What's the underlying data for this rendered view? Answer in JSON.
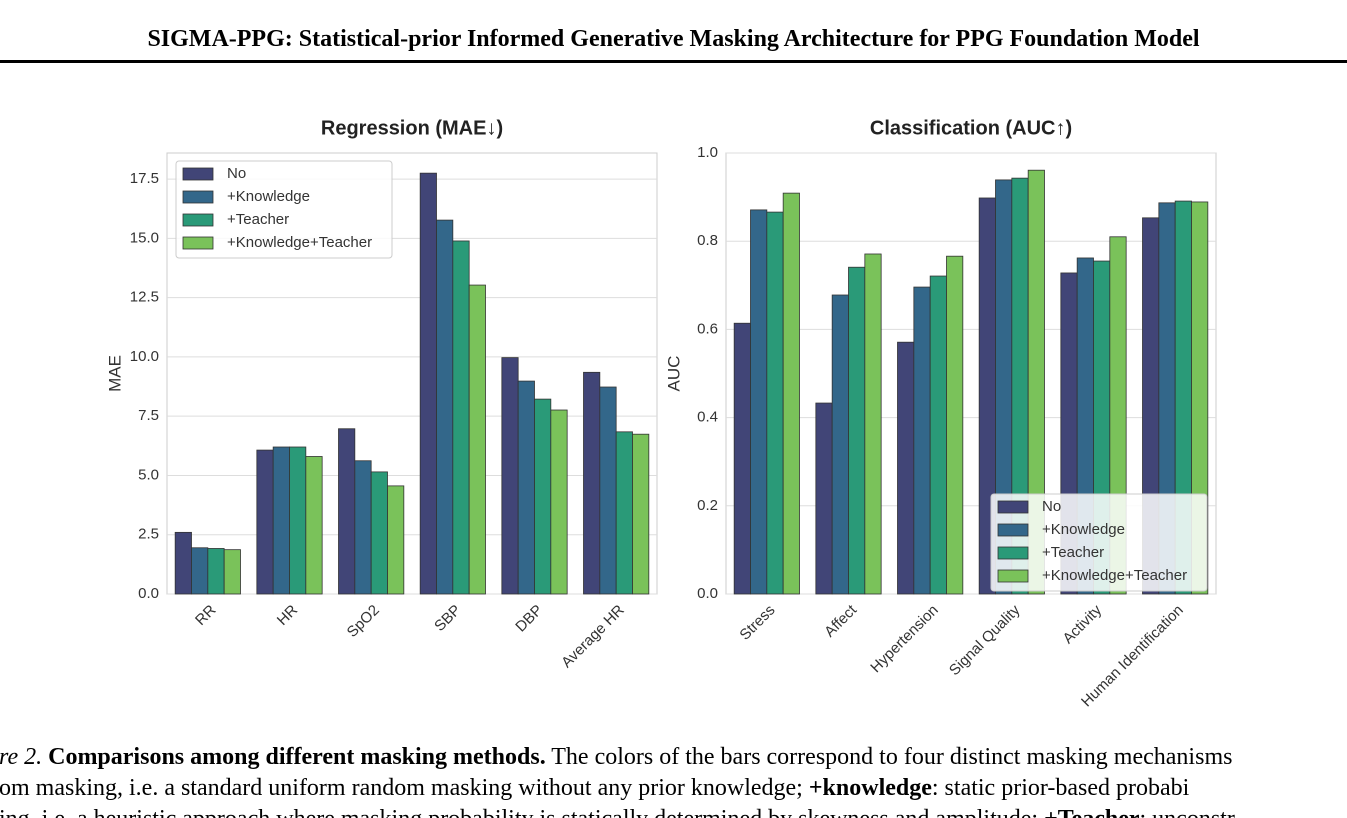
{
  "header": {
    "title": "SIGMA-PPG: Statistical-prior Informed Generative Masking Architecture for PPG Foundation Model"
  },
  "chart_data": [
    {
      "type": "bar",
      "title": "Regression (MAE↓)",
      "y_label": "MAE",
      "categories": [
        "RR",
        "HR",
        "SpO2",
        "SBP",
        "DBP",
        "Average HR"
      ],
      "series": [
        {
          "name": "No",
          "color": "#414577",
          "values": [
            2.6,
            6.07,
            6.97,
            17.75,
            9.97,
            9.35
          ]
        },
        {
          "name": "+Knowledge",
          "color": "#33678a",
          "values": [
            1.95,
            6.2,
            5.62,
            15.77,
            8.98,
            8.73
          ]
        },
        {
          "name": "+Teacher",
          "color": "#2a9a78",
          "values": [
            1.92,
            6.2,
            5.15,
            14.89,
            8.22,
            6.84
          ]
        },
        {
          "name": "+Knowledge+Teacher",
          "color": "#7ac25a",
          "values": [
            1.87,
            5.8,
            4.56,
            13.03,
            7.76,
            6.74
          ]
        }
      ],
      "ylim": [
        0,
        18.6
      ],
      "yticks": [
        {
          "value": 0,
          "label": "0.0"
        },
        2.5,
        {
          "value": 5,
          "label": "5.0"
        },
        7.5,
        {
          "value": 10,
          "label": "10.0"
        },
        12.5,
        {
          "value": 15,
          "label": "15.0"
        },
        17.5
      ],
      "grid": true,
      "legend": "upper left"
    },
    {
      "type": "bar",
      "title": "Classification (AUC↑)",
      "y_label": "AUC",
      "categories": [
        "Stress",
        "Affect",
        "Hypertension",
        "Signal Quality",
        "Activity",
        "Human Identification"
      ],
      "series": [
        {
          "name": "No",
          "color": "#414577",
          "values": [
            0.614,
            0.433,
            0.571,
            0.898,
            0.728,
            0.853
          ]
        },
        {
          "name": "+Knowledge",
          "color": "#33678a",
          "values": [
            0.871,
            0.678,
            0.696,
            0.939,
            0.762,
            0.887
          ]
        },
        {
          "name": "+Teacher",
          "color": "#2a9a78",
          "values": [
            0.866,
            0.741,
            0.721,
            0.943,
            0.755,
            0.891
          ]
        },
        {
          "name": "+Knowledge+Teacher",
          "color": "#7ac25a",
          "values": [
            0.909,
            0.771,
            0.766,
            0.961,
            0.81,
            0.889
          ]
        }
      ],
      "ylim": [
        0,
        1
      ],
      "yticks": [
        {
          "value": 0,
          "label": "0.0"
        },
        0.2,
        0.4,
        0.6,
        0.8,
        {
          "value": 1,
          "label": "1.0"
        }
      ],
      "grid": true,
      "legend": "lower right"
    }
  ],
  "caption": {
    "lines": [
      [
        {
          "text": "re 2.",
          "style": "italic"
        },
        {
          "text": " Comparisons among different masking methods.",
          "style": "bold"
        },
        {
          "text": " The colors of the bars correspond to four distinct masking mechanisms",
          "style": "normal"
        }
      ],
      [
        {
          "text": "om masking, i.e. a standard uniform random masking without any prior knowledge; ",
          "style": "normal"
        },
        {
          "text": "+knowledge",
          "style": "bold"
        },
        {
          "text": ": static prior-based probabi",
          "style": "normal"
        }
      ],
      [
        {
          "text": "ing, i.e. a heuristic approach where masking probability is statically determined by skewness and amplitude; ",
          "style": "normal"
        },
        {
          "text": "+Teacher",
          "style": "bold"
        },
        {
          "text": ": unconstr",
          "style": "normal"
        }
      ]
    ]
  }
}
